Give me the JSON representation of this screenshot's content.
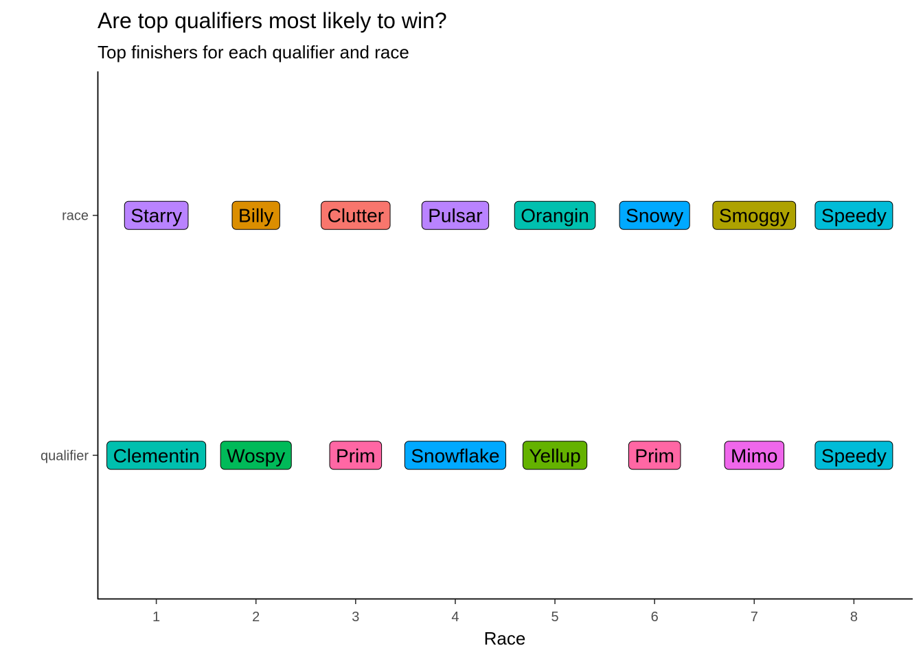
{
  "chart_data": {
    "type": "label",
    "title": "Are top qualifiers most likely to win?",
    "subtitle": "Top finishers for each qualifier and race",
    "xlabel": "Race",
    "ylabel": "",
    "x": [
      1,
      2,
      3,
      4,
      5,
      6,
      7,
      8
    ],
    "xlim": [
      0.41,
      8.59
    ],
    "y_categories": [
      "qualifier",
      "race"
    ],
    "grid": false,
    "legend": "none",
    "series": [
      {
        "name": "race",
        "labels": [
          "Starry",
          "Billy",
          "Clutter",
          "Pulsar",
          "Orangin",
          "Snowy",
          "Smoggy",
          "Speedy"
        ],
        "fills": [
          "#B983FF",
          "#DB8E00",
          "#F8766D",
          "#B983FF",
          "#00C0AF",
          "#00A9FF",
          "#AEA200",
          "#00BCD8"
        ]
      },
      {
        "name": "qualifier",
        "labels": [
          "Clementin",
          "Wospy",
          "Prim",
          "Snowflake",
          "Yellup",
          "Prim",
          "Mimo",
          "Speedy"
        ],
        "fills": [
          "#00BFAE",
          "#00BA59",
          "#FF67A4",
          "#00A9FF",
          "#64B200",
          "#FF67A4",
          "#EF67EB",
          "#00BCD8"
        ]
      }
    ]
  }
}
